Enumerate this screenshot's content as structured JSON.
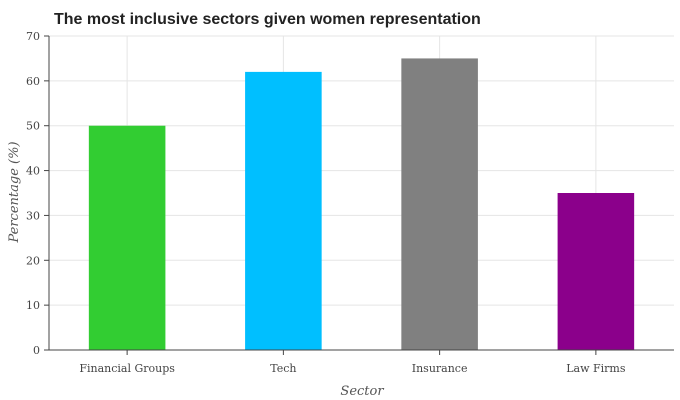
{
  "chart_data": {
    "type": "bar",
    "title": "The most inclusive sectors given women representation",
    "xlabel": "Sector",
    "ylabel": "Percentage (%)",
    "categories": [
      "Financial Groups",
      "Tech",
      "Insurance",
      "Law Firms"
    ],
    "values": [
      50,
      62,
      65,
      35
    ],
    "colors": [
      "#32cd32",
      "#00bfff",
      "#808080",
      "#8b008b"
    ],
    "ylim": [
      0,
      70
    ],
    "yticks": [
      0,
      10,
      20,
      30,
      40,
      50,
      60,
      70
    ],
    "grid": true,
    "legend": "none"
  }
}
